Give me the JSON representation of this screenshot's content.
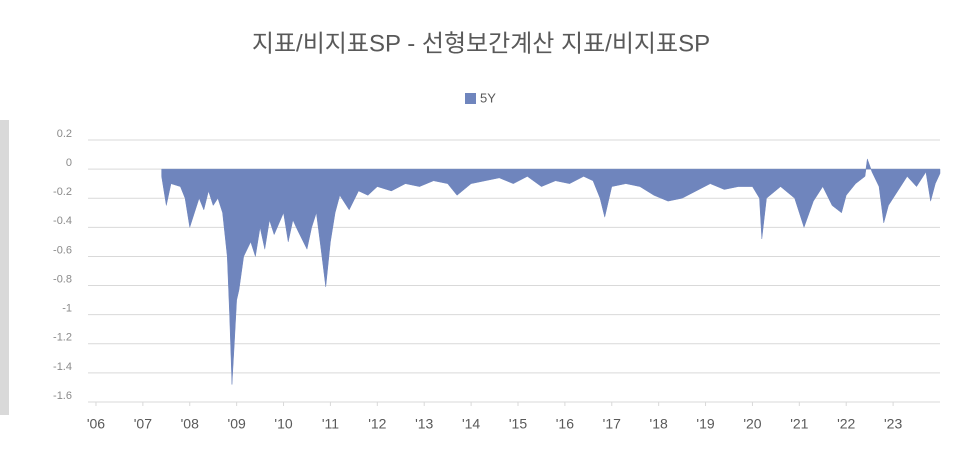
{
  "chart_data": {
    "type": "area",
    "title": "지표/비지표SP - 선형보간계산 지표/비지표SP",
    "xlim": [
      2005.83,
      2024.0
    ],
    "xticks": [
      {
        "value": 2006,
        "label": "'06"
      },
      {
        "value": 2007,
        "label": "'07"
      },
      {
        "value": 2008,
        "label": "'08"
      },
      {
        "value": 2009,
        "label": "'09"
      },
      {
        "value": 2010,
        "label": "'10"
      },
      {
        "value": 2011,
        "label": "'11"
      },
      {
        "value": 2012,
        "label": "'12"
      },
      {
        "value": 2013,
        "label": "'13"
      },
      {
        "value": 2014,
        "label": "'14"
      },
      {
        "value": 2015,
        "label": "'15"
      },
      {
        "value": 2016,
        "label": "'16"
      },
      {
        "value": 2017,
        "label": "'17"
      },
      {
        "value": 2018,
        "label": "'18"
      },
      {
        "value": 2019,
        "label": "'19"
      },
      {
        "value": 2020,
        "label": "'20"
      },
      {
        "value": 2021,
        "label": "'21"
      },
      {
        "value": 2022,
        "label": "'22"
      },
      {
        "value": 2023,
        "label": "'23"
      }
    ],
    "ylim": [
      -1.6,
      0.2
    ],
    "yticks": [
      0.2,
      0,
      -0.2,
      -0.4,
      -0.6,
      -0.8,
      -1,
      -1.2,
      -1.4,
      -1.6
    ],
    "grid": true,
    "legend": "top",
    "x": [
      2007.4,
      2007.5,
      2007.6,
      2007.8,
      2007.9,
      2008.0,
      2008.1,
      2008.2,
      2008.3,
      2008.4,
      2008.5,
      2008.6,
      2008.7,
      2008.8,
      2008.85,
      2008.9,
      2008.95,
      2009.0,
      2009.05,
      2009.15,
      2009.3,
      2009.4,
      2009.5,
      2009.6,
      2009.7,
      2009.8,
      2010.0,
      2010.1,
      2010.2,
      2010.3,
      2010.5,
      2010.6,
      2010.7,
      2010.8,
      2010.9,
      2011.0,
      2011.1,
      2011.2,
      2011.4,
      2011.6,
      2011.8,
      2012.0,
      2012.3,
      2012.6,
      2012.9,
      2013.2,
      2013.5,
      2013.7,
      2014.0,
      2014.3,
      2014.6,
      2014.9,
      2015.2,
      2015.5,
      2015.8,
      2016.1,
      2016.4,
      2016.6,
      2016.75,
      2016.85,
      2017.0,
      2017.3,
      2017.6,
      2017.9,
      2018.2,
      2018.5,
      2018.8,
      2019.1,
      2019.4,
      2019.7,
      2020.0,
      2020.15,
      2020.2,
      2020.3,
      2020.6,
      2020.9,
      2021.1,
      2021.3,
      2021.5,
      2021.7,
      2021.9,
      2022.0,
      2022.2,
      2022.4,
      2022.45,
      2022.55,
      2022.7,
      2022.8,
      2022.9,
      2023.1,
      2023.3,
      2023.5,
      2023.7,
      2023.8,
      2023.9,
      2024.0
    ],
    "series": [
      {
        "name": "5Y",
        "color": "#6f85bd",
        "values": [
          -0.05,
          -0.25,
          -0.1,
          -0.12,
          -0.2,
          -0.4,
          -0.3,
          -0.2,
          -0.28,
          -0.15,
          -0.25,
          -0.2,
          -0.3,
          -0.6,
          -1.0,
          -1.48,
          -1.2,
          -0.9,
          -0.83,
          -0.6,
          -0.5,
          -0.6,
          -0.4,
          -0.55,
          -0.35,
          -0.45,
          -0.3,
          -0.5,
          -0.35,
          -0.42,
          -0.55,
          -0.4,
          -0.3,
          -0.55,
          -0.81,
          -0.5,
          -0.3,
          -0.18,
          -0.28,
          -0.15,
          -0.18,
          -0.12,
          -0.15,
          -0.1,
          -0.12,
          -0.08,
          -0.1,
          -0.18,
          -0.1,
          -0.08,
          -0.06,
          -0.1,
          -0.05,
          -0.12,
          -0.08,
          -0.1,
          -0.05,
          -0.08,
          -0.2,
          -0.33,
          -0.12,
          -0.1,
          -0.12,
          -0.18,
          -0.22,
          -0.2,
          -0.15,
          -0.1,
          -0.14,
          -0.12,
          -0.12,
          -0.2,
          -0.48,
          -0.2,
          -0.12,
          -0.2,
          -0.4,
          -0.22,
          -0.12,
          -0.25,
          -0.3,
          -0.18,
          -0.1,
          -0.05,
          0.07,
          -0.02,
          -0.12,
          -0.37,
          -0.25,
          -0.15,
          -0.05,
          -0.12,
          -0.02,
          -0.22,
          -0.1,
          -0.03
        ]
      }
    ]
  }
}
